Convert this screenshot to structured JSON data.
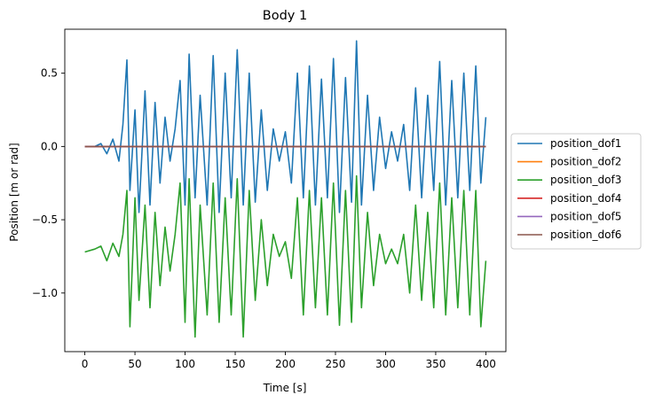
{
  "chart_data": {
    "type": "line",
    "title": "Body 1",
    "xlabel": "Time [s]",
    "ylabel": "Position [m or rad]",
    "xlim": [
      -20,
      420
    ],
    "ylim": [
      -1.4,
      0.8
    ],
    "xticks": [
      0,
      50,
      100,
      150,
      200,
      250,
      300,
      350,
      400
    ],
    "yticks": [
      0.5,
      0.0,
      -0.5,
      -1.0
    ],
    "ytick_labels": [
      "0.5",
      "0.0",
      "−0.5",
      "−1.0"
    ],
    "grid": false,
    "legend_position": "center-right, outside plot",
    "series": [
      {
        "name": "position_dof1",
        "color": "#1f77b4",
        "x": [
          0,
          10,
          16,
          22,
          28,
          34,
          38,
          42,
          45,
          50,
          54,
          60,
          65,
          70,
          75,
          80,
          85,
          90,
          95,
          100,
          104,
          110,
          115,
          122,
          128,
          134,
          140,
          146,
          152,
          158,
          164,
          170,
          176,
          182,
          188,
          194,
          200,
          206,
          212,
          218,
          224,
          230,
          236,
          242,
          248,
          254,
          260,
          266,
          271,
          276,
          282,
          288,
          294,
          300,
          306,
          312,
          318,
          324,
          330,
          336,
          342,
          348,
          354,
          360,
          366,
          372,
          378,
          384,
          390,
          395,
          400
        ],
        "y": [
          0.0,
          0.0,
          0.02,
          -0.05,
          0.05,
          -0.1,
          0.15,
          0.59,
          -0.3,
          0.25,
          -0.45,
          0.38,
          -0.4,
          0.3,
          -0.25,
          0.2,
          -0.1,
          0.12,
          0.45,
          -0.4,
          0.63,
          -0.35,
          0.35,
          -0.4,
          0.62,
          -0.45,
          0.5,
          -0.35,
          0.66,
          -0.4,
          0.5,
          -0.38,
          0.25,
          -0.3,
          0.12,
          -0.1,
          0.1,
          -0.25,
          0.5,
          -0.35,
          0.55,
          -0.4,
          0.46,
          -0.35,
          0.6,
          -0.45,
          0.47,
          -0.38,
          0.72,
          -0.4,
          0.35,
          -0.3,
          0.2,
          -0.15,
          0.1,
          -0.1,
          0.15,
          -0.3,
          0.4,
          -0.35,
          0.35,
          -0.3,
          0.58,
          -0.4,
          0.45,
          -0.35,
          0.5,
          -0.3,
          0.55,
          -0.25,
          0.2
        ]
      },
      {
        "name": "position_dof2",
        "color": "#ff7f0e",
        "x": [
          0,
          400
        ],
        "y": [
          0.0,
          0.0
        ]
      },
      {
        "name": "position_dof3",
        "color": "#2ca02c",
        "x": [
          0,
          10,
          16,
          22,
          28,
          34,
          38,
          42,
          45,
          50,
          54,
          60,
          65,
          70,
          75,
          80,
          85,
          90,
          95,
          100,
          104,
          110,
          115,
          122,
          128,
          134,
          140,
          146,
          152,
          158,
          164,
          170,
          176,
          182,
          188,
          194,
          200,
          206,
          212,
          218,
          224,
          230,
          236,
          242,
          248,
          254,
          260,
          266,
          271,
          276,
          282,
          288,
          294,
          300,
          306,
          312,
          318,
          324,
          330,
          336,
          342,
          348,
          354,
          360,
          366,
          372,
          378,
          384,
          390,
          395,
          400
        ],
        "y": [
          -0.72,
          -0.7,
          -0.68,
          -0.78,
          -0.66,
          -0.75,
          -0.6,
          -0.3,
          -1.23,
          -0.35,
          -1.05,
          -0.4,
          -1.1,
          -0.45,
          -0.95,
          -0.55,
          -0.85,
          -0.6,
          -0.25,
          -1.2,
          -0.22,
          -1.3,
          -0.4,
          -1.15,
          -0.25,
          -1.2,
          -0.35,
          -1.15,
          -0.22,
          -1.3,
          -0.3,
          -1.05,
          -0.5,
          -0.95,
          -0.6,
          -0.75,
          -0.65,
          -0.9,
          -0.35,
          -1.15,
          -0.3,
          -1.1,
          -0.35,
          -1.15,
          -0.25,
          -1.22,
          -0.3,
          -1.2,
          -0.2,
          -1.1,
          -0.45,
          -0.95,
          -0.6,
          -0.8,
          -0.7,
          -0.8,
          -0.6,
          -1.0,
          -0.4,
          -1.05,
          -0.45,
          -1.1,
          -0.25,
          -1.15,
          -0.35,
          -1.1,
          -0.3,
          -1.15,
          -0.3,
          -1.23,
          -0.78
        ]
      },
      {
        "name": "position_dof4",
        "color": "#d62728",
        "x": [
          0,
          400
        ],
        "y": [
          0.0,
          0.0
        ]
      },
      {
        "name": "position_dof5",
        "color": "#9467bd",
        "x": [
          0,
          400
        ],
        "y": [
          0.0,
          0.0
        ]
      },
      {
        "name": "position_dof6",
        "color": "#8c564b",
        "x": [
          0,
          400
        ],
        "y": [
          0.0,
          0.0
        ]
      }
    ]
  }
}
